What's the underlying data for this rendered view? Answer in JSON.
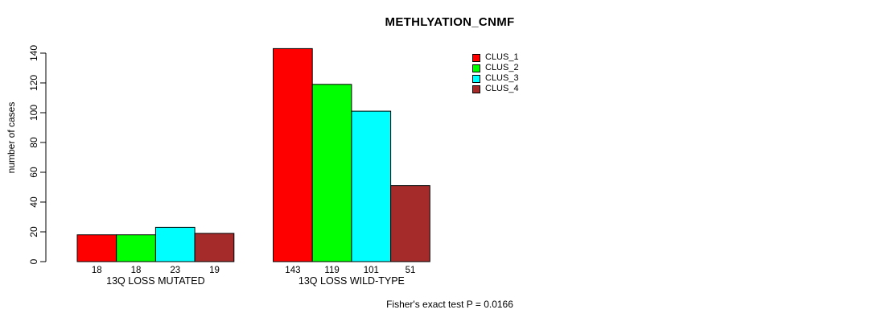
{
  "chart_data": {
    "type": "bar",
    "title": "METHLYATION_CNMF",
    "xlabel": "",
    "ylabel": "number of cases",
    "categories": [
      "13Q LOSS MUTATED",
      "13Q LOSS WILD-TYPE"
    ],
    "series": [
      {
        "name": "CLUS_1",
        "color": "#ff0000",
        "values": [
          18,
          143
        ]
      },
      {
        "name": "CLUS_2",
        "color": "#00ff00",
        "values": [
          18,
          119
        ]
      },
      {
        "name": "CLUS_3",
        "color": "#00ffff",
        "values": [
          23,
          101
        ]
      },
      {
        "name": "CLUS_4",
        "color": "#a52a2a",
        "values": [
          19,
          51
        ]
      }
    ],
    "yticks": [
      0,
      20,
      40,
      60,
      80,
      100,
      120,
      140
    ],
    "ylim": [
      0,
      145
    ],
    "grid": false,
    "legend_position": "top-right",
    "bar_value_labels_shown": true,
    "annotation": "Fisher's exact test P = 0.0166"
  }
}
